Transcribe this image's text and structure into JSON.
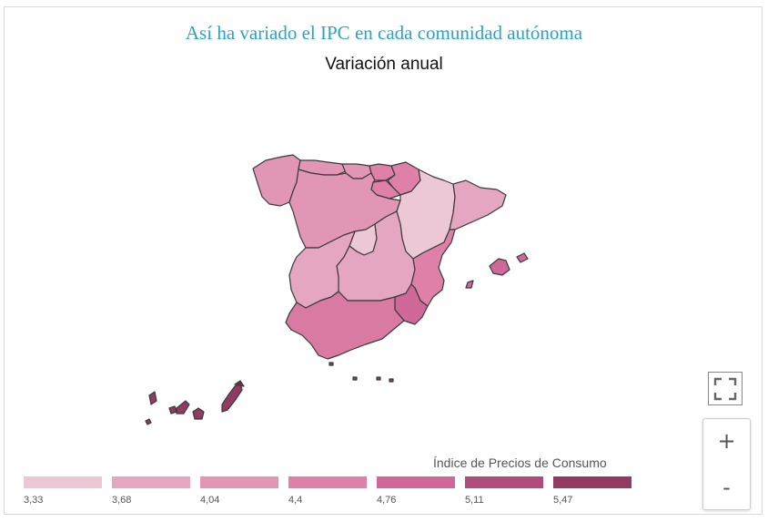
{
  "header": {
    "title": "Así ha variado el IPC en cada comunidad autónoma",
    "subtitle": "Variación anual"
  },
  "legend": {
    "title": "Índice de Precios de Consumo",
    "classes": [
      {
        "label": "3,33",
        "color": "#ecc8d6"
      },
      {
        "label": "3,68",
        "color": "#e4a6c0"
      },
      {
        "label": "4,04",
        "color": "#e196b6"
      },
      {
        "label": "4,4",
        "color": "#de80a8"
      },
      {
        "label": "4,76",
        "color": "#d0689a"
      },
      {
        "label": "5,11",
        "color": "#b04c7c"
      },
      {
        "label": "5,47",
        "color": "#923a62"
      }
    ]
  },
  "controls": {
    "zoom_in": "+",
    "zoom_out": "-",
    "fullscreen_icon": "fullscreen-icon"
  },
  "map_colors": {
    "stroke": "#3a3a3a",
    "lightest": "#ecc8d6",
    "light": "#e4a6c0",
    "medium": "#e196b6",
    "mediumdark": "#de80a8",
    "dark": "#d0689a",
    "darkest": "#923a62"
  }
}
